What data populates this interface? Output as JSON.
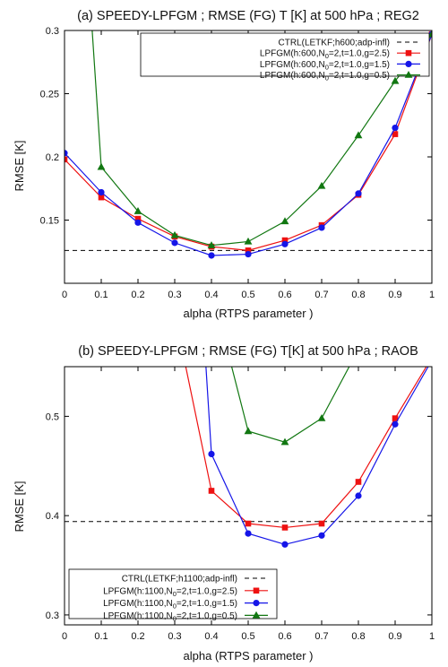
{
  "chart_data": [
    {
      "type": "line",
      "title": "(a) SPEEDY-LPFGM ; RMSE (FG) T [K] at 500 hPa ; REG2",
      "xlabel": "alpha (RTPS parameter )",
      "ylabel": "RMSE [K]",
      "xlim": [
        0,
        1
      ],
      "ylim": [
        0.1,
        0.3
      ],
      "xticks": [
        "0",
        "0.1",
        "0.2",
        "0.3",
        "0.4",
        "0.5",
        "0.6",
        "0.7",
        "0.8",
        "0.9",
        "1"
      ],
      "yticks": [
        "0.15",
        "0.2",
        "0.25",
        "0.3"
      ],
      "legend_position": "top-right",
      "reference": {
        "name": "CTRL(LETKF;h600;adp-infl)",
        "value": 0.126,
        "style": "dashed",
        "color": "#000000"
      },
      "series": [
        {
          "name": "LPFGM(h:600,N",
          "name_sub": "0",
          "name_tail": "=2,t=1.0,g=2.5)",
          "color": "#ee1111",
          "marker": "square",
          "x": [
            0,
            0.1,
            0.2,
            0.3,
            0.4,
            0.5,
            0.6,
            0.7,
            0.8,
            0.9,
            1.0
          ],
          "y": [
            0.198,
            0.168,
            0.151,
            0.137,
            0.129,
            0.126,
            0.134,
            0.146,
            0.17,
            0.218,
            0.297
          ]
        },
        {
          "name": "LPFGM(h:600,N",
          "name_sub": "0",
          "name_tail": "=2,t=1.0,g=1.5)",
          "color": "#1515e8",
          "marker": "circle",
          "x": [
            0,
            0.1,
            0.2,
            0.3,
            0.4,
            0.5,
            0.6,
            0.7,
            0.8,
            0.9,
            1.0
          ],
          "y": [
            0.203,
            0.172,
            0.148,
            0.132,
            0.122,
            0.123,
            0.131,
            0.144,
            0.171,
            0.223,
            0.297
          ]
        },
        {
          "name": "LPFGM(h:600,N",
          "name_sub": "0",
          "name_tail": "=2,t=1.0,g=0.5)",
          "color": "#117711",
          "marker": "triangle",
          "x": [
            0.1,
            0.2,
            0.3,
            0.4,
            0.5,
            0.6,
            0.7,
            0.8,
            0.9,
            1.0
          ],
          "y": [
            0.192,
            0.157,
            0.138,
            0.13,
            0.133,
            0.149,
            0.177,
            0.217,
            0.26,
            0.297
          ],
          "off_top_from_x": 0.075
        }
      ]
    },
    {
      "type": "line",
      "title": "(b) SPEEDY-LPFGM ; RMSE (FG) T[K] at 500 hPa ; RAOB",
      "xlabel": "alpha (RTPS parameter )",
      "ylabel": "RMSE [K]",
      "xlim": [
        0,
        1
      ],
      "ylim": [
        0.29,
        0.55
      ],
      "xticks": [
        "0",
        "0.1",
        "0.2",
        "0.3",
        "0.4",
        "0.5",
        "0.6",
        "0.7",
        "0.8",
        "0.9",
        "1"
      ],
      "yticks": [
        "0.3",
        "0.4",
        "0.5"
      ],
      "legend_position": "bottom-left",
      "reference": {
        "name": "CTRL(LETKF;h1100;adp-infl)",
        "value": 0.394,
        "style": "dashed",
        "color": "#000000"
      },
      "series": [
        {
          "name": "LPFGM(h:1100,N",
          "name_sub": "0",
          "name_tail": "=2,t=1.0,g=2.5)",
          "color": "#ee1111",
          "marker": "square",
          "x": [
            0.4,
            0.5,
            0.6,
            0.7,
            0.8,
            0.9
          ],
          "y": [
            0.425,
            0.392,
            0.388,
            0.392,
            0.434,
            0.498
          ],
          "lead_in": {
            "x": [
              0.33,
              0.4
            ],
            "y": [
              0.55,
              0.425
            ]
          },
          "lead_out": {
            "x": [
              0.9,
              0.985
            ],
            "y": [
              0.498,
              0.55
            ]
          }
        },
        {
          "name": "LPFGM(h:1100,N",
          "name_sub": "0",
          "name_tail": "=2,t=1.0,g=1.5)",
          "color": "#1515e8",
          "marker": "circle",
          "x": [
            0.4,
            0.5,
            0.6,
            0.7,
            0.8,
            0.9
          ],
          "y": [
            0.462,
            0.382,
            0.371,
            0.38,
            0.42,
            0.492
          ],
          "lead_in": {
            "x": [
              0.385,
              0.4
            ],
            "y": [
              0.55,
              0.462
            ]
          },
          "lead_out": {
            "x": [
              0.9,
              0.99
            ],
            "y": [
              0.492,
              0.55
            ]
          }
        },
        {
          "name": "LPFGM(h:1100,N",
          "name_sub": "0",
          "name_tail": "=2,t=1.0,g=0.5)",
          "color": "#117711",
          "marker": "triangle",
          "x": [
            0.5,
            0.6,
            0.7
          ],
          "y": [
            0.485,
            0.474,
            0.498
          ],
          "lead_in": {
            "x": [
              0.455,
              0.5
            ],
            "y": [
              0.55,
              0.485
            ]
          },
          "lead_out": {
            "x": [
              0.7,
              0.775
            ],
            "y": [
              0.498,
              0.55
            ]
          }
        }
      ]
    }
  ]
}
